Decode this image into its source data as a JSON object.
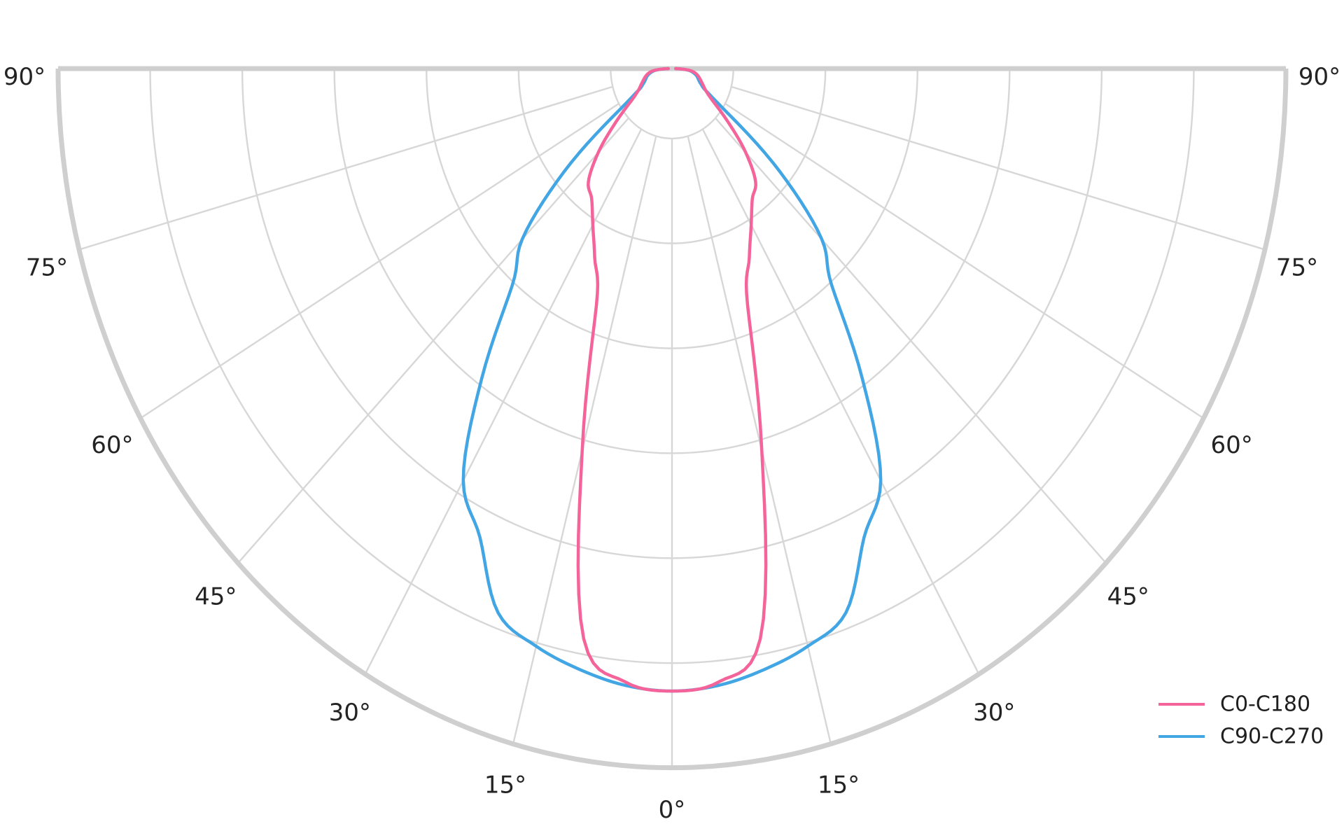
{
  "chart_data": {
    "type": "polar_photometric",
    "title": "",
    "grid": {
      "radial_ring_fractions": [
        0.1,
        0.25,
        0.4,
        0.55,
        0.7,
        0.85,
        1.0
      ],
      "hub_fraction": 0.1,
      "angle_grid_step_deg": 15,
      "angle_min_deg": -90,
      "angle_max_deg": 90,
      "grid_color": "#d7d7d7",
      "boundary_color": "#cfcfcf"
    },
    "angle_ticks": [
      {
        "angle_deg": 0,
        "label": "0°"
      },
      {
        "angle_deg": 15,
        "label": "15°"
      },
      {
        "angle_deg": 30,
        "label": "30°"
      },
      {
        "angle_deg": 45,
        "label": "45°"
      },
      {
        "angle_deg": 60,
        "label": "60°"
      },
      {
        "angle_deg": 75,
        "label": "75°"
      },
      {
        "angle_deg": 90,
        "label": "90°"
      }
    ],
    "tick_label_color": "#232323",
    "series": [
      {
        "name": "C90-C270",
        "color": "#42a5e4",
        "symmetric": true,
        "angles_deg": [
          0,
          5,
          10,
          15,
          20,
          25,
          30,
          35,
          40,
          45,
          50,
          55,
          60,
          65,
          70,
          75,
          80,
          85,
          90
        ],
        "radius_fraction": [
          0.89,
          0.885,
          0.872,
          0.855,
          0.828,
          0.74,
          0.68,
          0.54,
          0.405,
          0.345,
          0.23,
          0.11,
          0.065,
          0.052,
          0.046,
          0.042,
          0.036,
          0.027,
          0.006
        ]
      },
      {
        "name": "C0-C180",
        "color": "#f4649a",
        "symmetric": true,
        "angles_deg": [
          0,
          5,
          10,
          15,
          20,
          25,
          30,
          35,
          40,
          45,
          50,
          55,
          60,
          65,
          70,
          75,
          80,
          85,
          90
        ],
        "radius_fraction": [
          0.89,
          0.88,
          0.828,
          0.565,
          0.36,
          0.298,
          0.258,
          0.228,
          0.212,
          0.17,
          0.12,
          0.082,
          0.064,
          0.056,
          0.05,
          0.045,
          0.039,
          0.029,
          0.006
        ]
      }
    ],
    "legend": {
      "position": "lower-right",
      "items": [
        {
          "label": "C0-C180",
          "color": "#f4649a"
        },
        {
          "label": "C90-C270",
          "color": "#42a5e4"
        }
      ]
    }
  }
}
